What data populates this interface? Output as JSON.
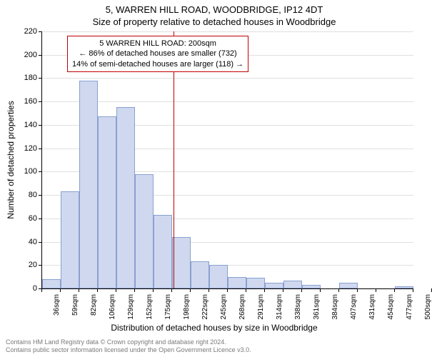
{
  "title_line1": "5, WARREN HILL ROAD, WOODBRIDGE, IP12 4DT",
  "title_line2": "Size of property relative to detached houses in Woodbridge",
  "y_label": "Number of detached properties",
  "x_label": "Distribution of detached houses by size in Woodbridge",
  "copyright_line1": "Contains HM Land Registry data © Crown copyright and database right 2024.",
  "copyright_line2": "Contains public sector information licensed under the Open Government Licence v3.0.",
  "chart": {
    "type": "histogram",
    "ymin": 0,
    "ymax": 220,
    "ytick_step": 20,
    "bar_fill": "#cfd8ef",
    "bar_border": "#8aa0d0",
    "grid_color": "#e0e0e0",
    "ref_line_color": "#c00000",
    "ref_line_value": 200,
    "annotation_border": "#c00000",
    "annotation_lines": [
      "5 WARREN HILL ROAD: 200sqm",
      "← 86% of detached houses are smaller (732)",
      "14% of semi-detached houses are larger (118) →"
    ],
    "x_ticks": [
      "36sqm",
      "59sqm",
      "82sqm",
      "106sqm",
      "129sqm",
      "152sqm",
      "175sqm",
      "198sqm",
      "222sqm",
      "245sqm",
      "268sqm",
      "291sqm",
      "314sqm",
      "338sqm",
      "361sqm",
      "384sqm",
      "407sqm",
      "431sqm",
      "454sqm",
      "477sqm",
      "500sqm"
    ],
    "bars": [
      {
        "x": 1,
        "h": 8
      },
      {
        "x": 2,
        "h": 83
      },
      {
        "x": 3,
        "h": 178
      },
      {
        "x": 4,
        "h": 147
      },
      {
        "x": 5,
        "h": 155
      },
      {
        "x": 6,
        "h": 98
      },
      {
        "x": 7,
        "h": 63
      },
      {
        "x": 8,
        "h": 44
      },
      {
        "x": 9,
        "h": 23
      },
      {
        "x": 10,
        "h": 20
      },
      {
        "x": 11,
        "h": 10
      },
      {
        "x": 12,
        "h": 9
      },
      {
        "x": 13,
        "h": 5
      },
      {
        "x": 14,
        "h": 7
      },
      {
        "x": 15,
        "h": 3
      },
      {
        "x": 16,
        "h": 0
      },
      {
        "x": 17,
        "h": 5
      },
      {
        "x": 18,
        "h": 0
      },
      {
        "x": 19,
        "h": 0
      },
      {
        "x": 20,
        "h": 2
      }
    ],
    "bar_count": 20
  }
}
